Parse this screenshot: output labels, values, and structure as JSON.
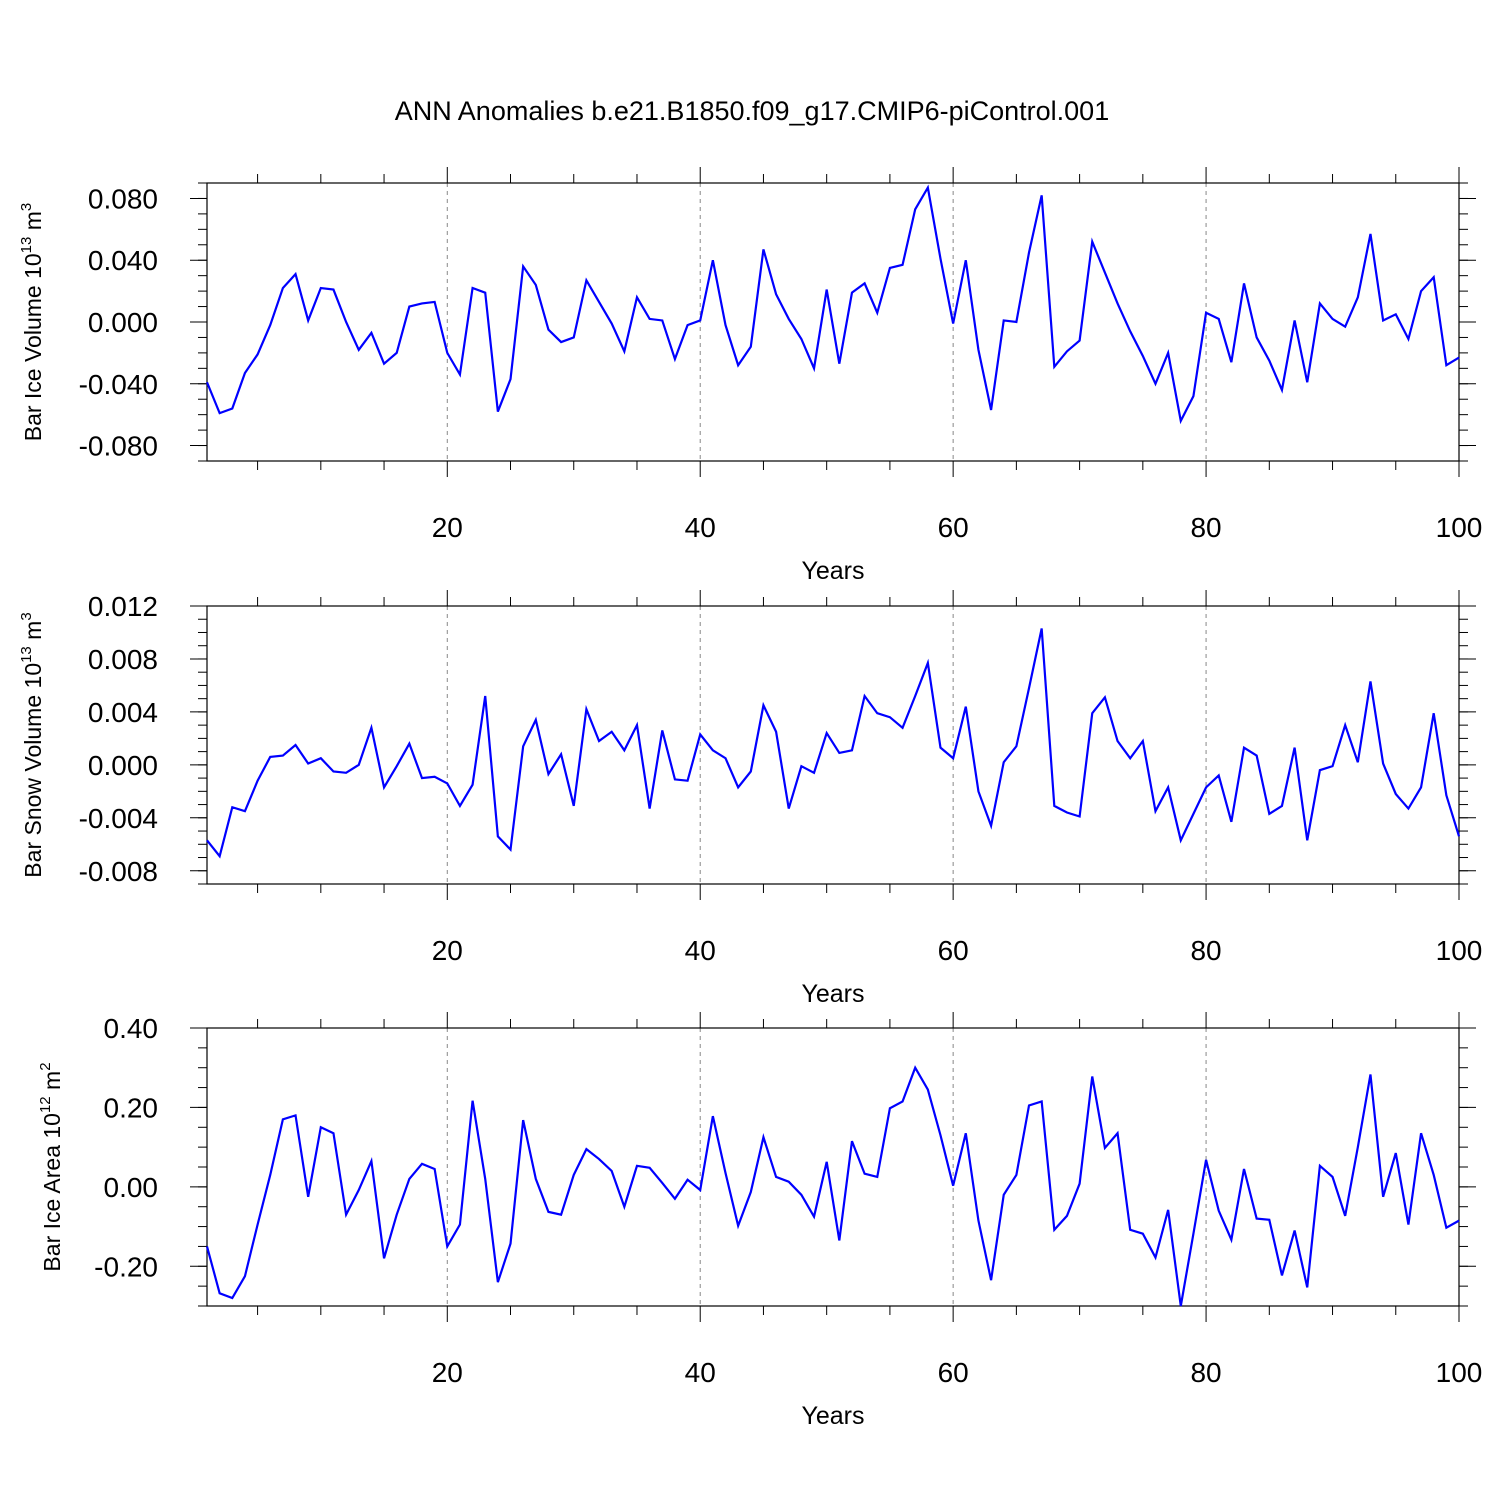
{
  "title": "ANN Anomalies b.e21.B1850.f09_g17.CMIP6-piControl.001",
  "series_color": "#0000ff",
  "chart_data": [
    {
      "type": "line",
      "ylabel": {
        "text": "Bar Ice Volume 10",
        "sup": "13",
        "unit": " m",
        "unit_sup": "3"
      },
      "xlabel": "Years",
      "xlim": [
        1,
        100
      ],
      "ylim": [
        -0.09,
        0.09
      ],
      "xticks": [
        20,
        40,
        60,
        80,
        100
      ],
      "xtick_labels": [
        "20",
        "40",
        "60",
        "80",
        "100"
      ],
      "yticks": [
        -0.08,
        -0.04,
        0.0,
        0.04,
        0.08
      ],
      "ytick_labels": [
        "-0.080",
        "-0.040",
        "0.000",
        "0.040",
        "0.080"
      ],
      "y_minor_step": 0.01,
      "vgrid": [
        20,
        40,
        60,
        80
      ],
      "x_start": 1,
      "values": [
        -0.039,
        -0.059,
        -0.056,
        -0.033,
        -0.021,
        -0.002,
        0.022,
        0.031,
        0.001,
        0.022,
        0.021,
        0.0,
        -0.018,
        -0.007,
        -0.027,
        -0.02,
        0.01,
        0.012,
        0.013,
        -0.02,
        -0.034,
        0.022,
        0.019,
        -0.058,
        -0.037,
        0.036,
        0.024,
        -0.005,
        -0.013,
        -0.01,
        0.027,
        0.013,
        -0.001,
        -0.019,
        0.016,
        0.002,
        0.001,
        -0.024,
        -0.002,
        0.001,
        0.04,
        -0.002,
        -0.028,
        -0.016,
        0.047,
        0.018,
        0.002,
        -0.011,
        -0.03,
        0.021,
        -0.027,
        0.019,
        0.025,
        0.006,
        0.035,
        0.037,
        0.073,
        0.087,
        0.041,
        -0.001,
        0.04,
        -0.018,
        -0.057,
        0.001,
        0.0,
        0.045,
        0.082,
        -0.029,
        -0.019,
        -0.012,
        0.052,
        0.032,
        0.012,
        -0.006,
        -0.022,
        -0.04,
        -0.02,
        -0.064,
        -0.048,
        0.006,
        0.002,
        -0.026,
        0.025,
        -0.01,
        -0.025,
        -0.044,
        0.001,
        -0.039,
        0.012,
        0.002,
        -0.003,
        0.016,
        0.057,
        0.001,
        0.005,
        -0.011,
        0.02,
        0.029,
        -0.028,
        -0.023
      ]
    },
    {
      "type": "line",
      "ylabel": {
        "text": "Bar Snow Volume 10",
        "sup": "13",
        "unit": " m",
        "unit_sup": "3"
      },
      "xlabel": "Years",
      "xlim": [
        1,
        100
      ],
      "ylim": [
        -0.009,
        0.012
      ],
      "xticks": [
        20,
        40,
        60,
        80,
        100
      ],
      "xtick_labels": [
        "20",
        "40",
        "60",
        "80",
        "100"
      ],
      "yticks": [
        -0.008,
        -0.004,
        0.0,
        0.004,
        0.008,
        0.012
      ],
      "ytick_labels": [
        "-0.008",
        "-0.004",
        "0.000",
        "0.004",
        "0.008",
        "0.012"
      ],
      "y_minor_step": 0.001,
      "vgrid": [
        20,
        40,
        60,
        80
      ],
      "x_start": 1,
      "values": [
        -0.0057,
        -0.0069,
        -0.0032,
        -0.0035,
        -0.0012,
        0.0006,
        0.0007,
        0.0015,
        0.0001,
        0.0005,
        -0.0005,
        -0.0006,
        0.0,
        0.0028,
        -0.0017,
        -0.0001,
        0.0016,
        -0.001,
        -0.0009,
        -0.0014,
        -0.0031,
        -0.0015,
        0.0052,
        -0.0054,
        -0.0064,
        0.0014,
        0.0034,
        -0.0007,
        0.0008,
        -0.0031,
        0.0042,
        0.0018,
        0.0025,
        0.0011,
        0.003,
        -0.0033,
        0.0026,
        -0.0011,
        -0.0012,
        0.0023,
        0.0011,
        0.0005,
        -0.0017,
        -0.0005,
        0.0045,
        0.0025,
        -0.0033,
        -0.0001,
        -0.0006,
        0.0024,
        0.0009,
        0.0011,
        0.0052,
        0.0039,
        0.0036,
        0.0028,
        0.0052,
        0.0077,
        0.0013,
        0.0005,
        0.0044,
        -0.002,
        -0.0046,
        0.0002,
        0.0014,
        0.0058,
        0.0103,
        -0.0031,
        -0.0036,
        -0.0039,
        0.0039,
        0.0051,
        0.0018,
        0.0005,
        0.0018,
        -0.0035,
        -0.0017,
        -0.0057,
        -0.0037,
        -0.0017,
        -0.0008,
        -0.0043,
        0.0013,
        0.0007,
        -0.0037,
        -0.0031,
        0.0013,
        -0.0057,
        -0.0004,
        -0.0001,
        0.003,
        0.0002,
        0.0063,
        0.0001,
        -0.0022,
        -0.0033,
        -0.0017,
        0.0039,
        -0.0023,
        -0.0054
      ]
    },
    {
      "type": "line",
      "ylabel": {
        "text": "Bar Ice Area 10",
        "sup": "12",
        "unit": " m",
        "unit_sup": "2"
      },
      "xlabel": "Years",
      "xlim": [
        1,
        100
      ],
      "ylim": [
        -0.3,
        0.4
      ],
      "xticks": [
        20,
        40,
        60,
        80,
        100
      ],
      "xtick_labels": [
        "20",
        "40",
        "60",
        "80",
        "100"
      ],
      "yticks": [
        -0.2,
        0.0,
        0.2,
        0.4
      ],
      "ytick_labels": [
        "-0.20",
        "0.00",
        "0.20",
        "0.40"
      ],
      "y_minor_step": 0.05,
      "vgrid": [
        20,
        40,
        60,
        80
      ],
      "x_start": 1,
      "values": [
        -0.15,
        -0.268,
        -0.28,
        -0.225,
        -0.095,
        0.03,
        0.17,
        0.18,
        -0.025,
        0.15,
        0.135,
        -0.07,
        -0.008,
        0.065,
        -0.18,
        -0.07,
        0.02,
        0.058,
        0.045,
        -0.15,
        -0.095,
        0.217,
        0.02,
        -0.24,
        -0.143,
        0.168,
        0.02,
        -0.063,
        -0.07,
        0.03,
        0.095,
        0.07,
        0.04,
        -0.05,
        0.053,
        0.048,
        0.01,
        -0.03,
        0.018,
        -0.008,
        0.178,
        0.035,
        -0.098,
        -0.013,
        0.125,
        0.025,
        0.013,
        -0.02,
        -0.075,
        0.063,
        -0.135,
        0.115,
        0.033,
        0.025,
        0.198,
        0.215,
        0.3,
        0.245,
        0.13,
        0.003,
        0.135,
        -0.085,
        -0.235,
        -0.02,
        0.03,
        0.205,
        0.215,
        -0.108,
        -0.073,
        0.008,
        0.278,
        0.098,
        0.135,
        -0.108,
        -0.118,
        -0.178,
        -0.058,
        -0.3,
        -0.118,
        0.068,
        -0.06,
        -0.133,
        0.045,
        -0.08,
        -0.083,
        -0.223,
        -0.11,
        -0.253,
        0.053,
        0.025,
        -0.073,
        0.1,
        0.283,
        -0.025,
        0.085,
        -0.095,
        0.135,
        0.03,
        -0.103,
        -0.085
      ]
    }
  ]
}
